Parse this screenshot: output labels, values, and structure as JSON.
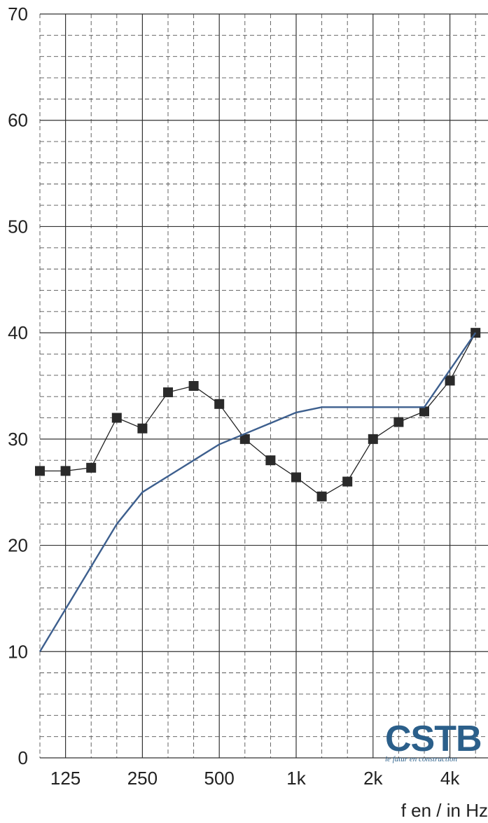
{
  "chart_data": {
    "type": "line",
    "ylim": [
      0,
      70
    ],
    "yticks": [
      "0",
      "10",
      "20",
      "30",
      "40",
      "50",
      "60",
      "70"
    ],
    "x": [
      "100",
      "125",
      "160",
      "200",
      "250",
      "315",
      "400",
      "500",
      "630",
      "800",
      "1k",
      "1.25k",
      "1.6k",
      "2k",
      "2.5k",
      "3.15k",
      "4k",
      "5k"
    ],
    "xtick_labels": [
      "125",
      "250",
      "500",
      "1k",
      "2k",
      "4k"
    ],
    "xlabel": "f en / in Hz",
    "ylabel": "",
    "grid": true,
    "series": [
      {
        "values": [
          27,
          27,
          27.3,
          32,
          31,
          34.4,
          35,
          33.3,
          30,
          28,
          26.4,
          24.6,
          26,
          30,
          31.6,
          32.6,
          35.5,
          40
        ],
        "color": "#222222",
        "marker": "square"
      },
      {
        "values": [
          10,
          14,
          18,
          22,
          25,
          28,
          29.5,
          30.5,
          31.5,
          32.5,
          33,
          33,
          33,
          33,
          33,
          40
        ],
        "x": [
          "100",
          "125",
          "160",
          "200",
          "250",
          "400",
          "500",
          "630",
          "800",
          "1k",
          "1.25k",
          "1.6k",
          "2k",
          "2.5k",
          "3.15k",
          "5k"
        ],
        "color": "#3d5f8e",
        "marker": "none"
      }
    ]
  },
  "logo": {
    "text": "CSTB",
    "tagline": "le futur en construction",
    "color": "#2b5f8a"
  }
}
